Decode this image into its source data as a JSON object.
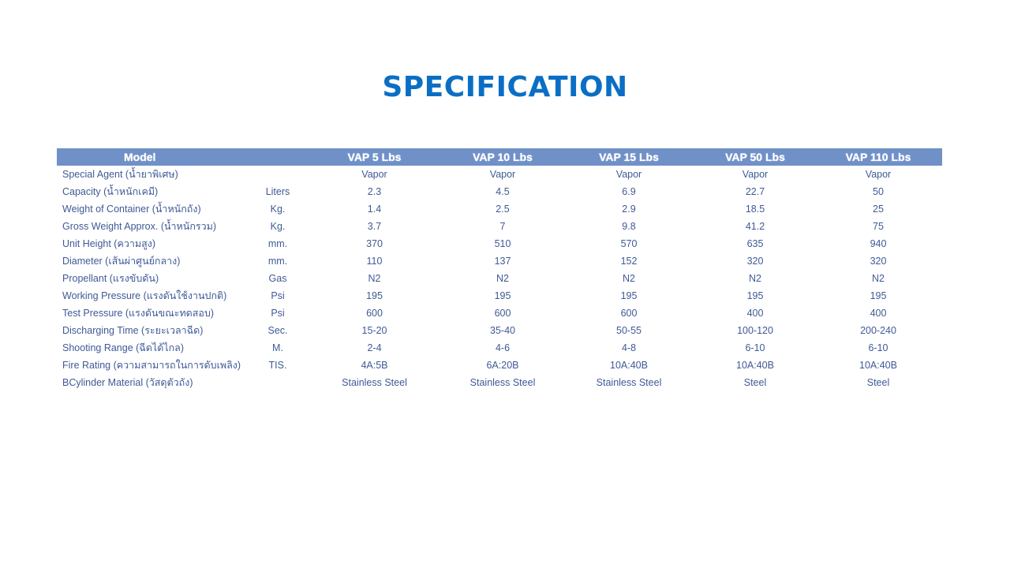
{
  "title": "SPECIFICATION",
  "table": {
    "header": {
      "model": "Model",
      "unit": "",
      "columns": [
        "VAP 5 Lbs",
        "VAP 10 Lbs",
        "VAP 15 Lbs",
        "VAP 50 Lbs",
        "VAP 110 Lbs"
      ]
    },
    "rows": [
      {
        "label": "Special Agent (น้ำยาพิเศษ)",
        "unit": "",
        "values": [
          "Vapor",
          "Vapor",
          "Vapor",
          "Vapor",
          "Vapor"
        ]
      },
      {
        "label": "Capacity (น้ำหนักเคมี)",
        "unit": "Liters",
        "values": [
          "2.3",
          "4.5",
          "6.9",
          "22.7",
          "50"
        ]
      },
      {
        "label": "Weight of Container (น้ำหนักถัง)",
        "unit": "Kg.",
        "values": [
          "1.4",
          "2.5",
          "2.9",
          "18.5",
          "25"
        ]
      },
      {
        "label": "Gross Weight Approx. (น้ำหนักรวม)",
        "unit": "Kg.",
        "values": [
          "3.7",
          "7",
          "9.8",
          "41.2",
          "75"
        ]
      },
      {
        "label": "Unit Height (ความสูง)",
        "unit": "mm.",
        "values": [
          "370",
          "510",
          "570",
          "635",
          "940"
        ]
      },
      {
        "label": "Diameter (เส้นผ่าศูนย์กลาง)",
        "unit": "mm.",
        "values": [
          "110",
          "137",
          "152",
          "320",
          "320"
        ]
      },
      {
        "label": "Propellant (แรงขับดัน)",
        "unit": "Gas",
        "values": [
          "N2",
          "N2",
          "N2",
          "N2",
          "N2"
        ]
      },
      {
        "label": "Working Pressure (แรงดันใช้งานปกติ)",
        "unit": "Psi",
        "values": [
          "195",
          "195",
          "195",
          "195",
          "195"
        ]
      },
      {
        "label": "Test Pressure (แรงดันขณะทดสอบ)",
        "unit": "Psi",
        "values": [
          "600",
          "600",
          "600",
          "400",
          "400"
        ]
      },
      {
        "label": "Discharging Time (ระยะเวลาฉีด)",
        "unit": "Sec.",
        "values": [
          "15-20",
          "35-40",
          "50-55",
          "100-120",
          "200-240"
        ]
      },
      {
        "label": "Shooting Range (ฉีดได้ไกล)",
        "unit": "M.",
        "values": [
          "2-4",
          "4-6",
          "4-8",
          "6-10",
          "6-10"
        ]
      },
      {
        "label": "Fire Rating (ความสามารถในการดับเพลิง)",
        "unit": "TIS.",
        "values": [
          "4A:5B",
          "6A:20B",
          "10A:40B",
          "10A:40B",
          "10A:40B"
        ]
      },
      {
        "label": "BCylinder Material (วัสดุตัวถัง)",
        "unit": "",
        "values": [
          "Stainless Steel",
          "Stainless Steel",
          "Stainless Steel",
          "Steel",
          "Steel"
        ]
      }
    ]
  }
}
